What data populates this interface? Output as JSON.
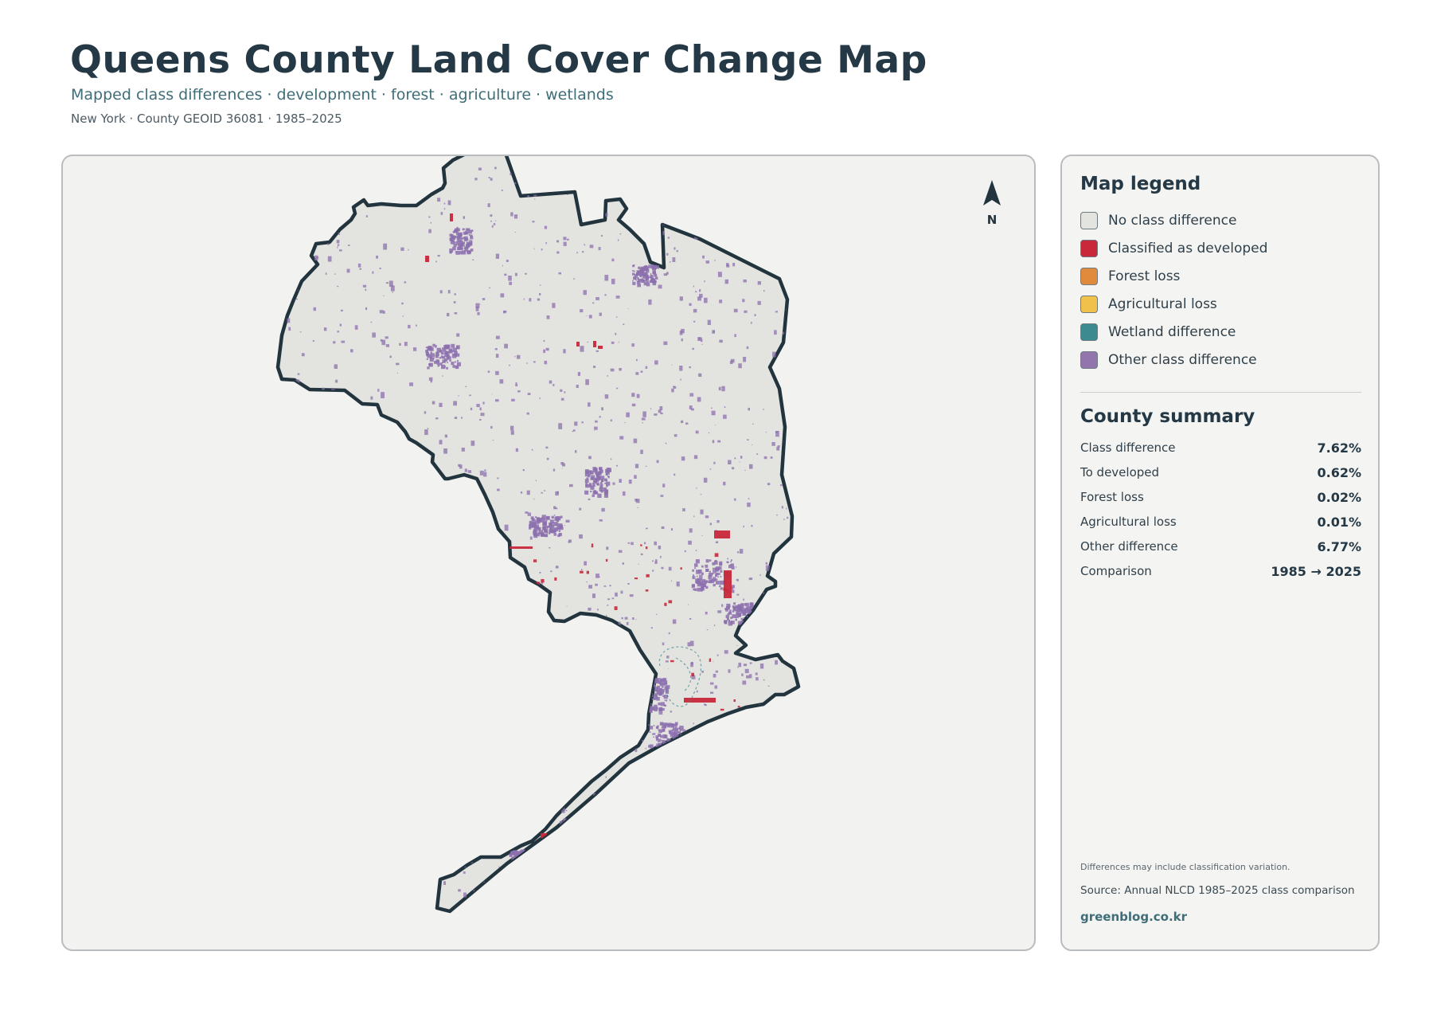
{
  "header": {
    "title": "Queens County Land Cover Change Map",
    "subtitle": "Mapped class differences · development · forest · agriculture · wetlands",
    "meta": "New York · County GEOID 36081 · 1985–2025"
  },
  "map": {
    "north_label": "N",
    "colors": {
      "background": "#f2f2f0",
      "county_fill": "#e3e3e0",
      "county_outline": "#22343e",
      "developed": "#c8283a",
      "other": "#8c70ae",
      "wetland": "#3d8a90"
    }
  },
  "legend": {
    "title": "Map legend",
    "items": [
      {
        "label": "No class difference",
        "color": "#e3e3e0"
      },
      {
        "label": "Classified as developed",
        "color": "#c8283a"
      },
      {
        "label": "Forest loss",
        "color": "#e08a3c"
      },
      {
        "label": "Agricultural loss",
        "color": "#f0c24a"
      },
      {
        "label": "Wetland difference",
        "color": "#3d8a90"
      },
      {
        "label": "Other class difference",
        "color": "#9275ad"
      }
    ]
  },
  "summary": {
    "title": "County summary",
    "rows": [
      {
        "label": "Class difference",
        "value": "7.62%"
      },
      {
        "label": "To developed",
        "value": "0.62%"
      },
      {
        "label": "Forest loss",
        "value": "0.02%"
      },
      {
        "label": "Agricultural loss",
        "value": "0.01%"
      },
      {
        "label": "Other difference",
        "value": "6.77%"
      },
      {
        "label": "Comparison",
        "value": "1985 → 2025"
      }
    ]
  },
  "footer": {
    "note": "Differences may include classification variation.",
    "source": "Source: Annual NLCD 1985–2025 class comparison",
    "brand": "greenblog.co.kr"
  }
}
